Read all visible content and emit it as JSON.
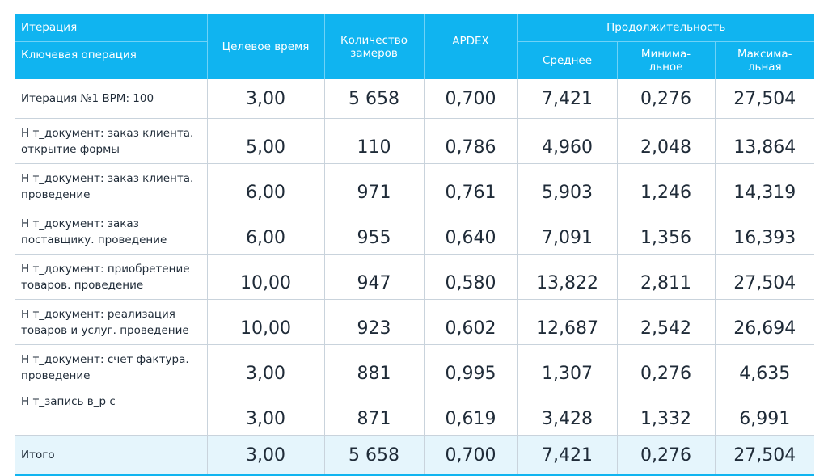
{
  "headers": {
    "iteration": "Итерация",
    "key_operation": "Ключевая операция",
    "target_time": "Целевое время",
    "count": "Количество замеров",
    "apdex": "APDEX",
    "duration": "Продолжительность",
    "avg": "Среднее",
    "min": "Минима-льное",
    "max": "Максима-льная"
  },
  "rows": [
    {
      "op": "Итерация №1 BPM: 100",
      "target": "3,00",
      "count": "5 658",
      "apdex": "0,700",
      "avg": "7,421",
      "min": "0,276",
      "max": "27,504"
    },
    {
      "op": "Н т_документ: заказ клиента. открытие  формы",
      "target": "5,00",
      "count": "110",
      "apdex": "0,786",
      "avg": "4,960",
      "min": "2,048",
      "max": "13,864"
    },
    {
      "op": "Н т_документ: заказ клиента. проведение",
      "target": "6,00",
      "count": "971",
      "apdex": "0,761",
      "avg": "5,903",
      "min": "1,246",
      "max": "14,319"
    },
    {
      "op": "Н т_документ: заказ поставщику. проведение",
      "target": "6,00",
      "count": "955",
      "apdex": "0,640",
      "avg": "7,091",
      "min": "1,356",
      "max": "16,393"
    },
    {
      "op": "Н т_документ: приобретение товаров. проведение",
      "target": "10,00",
      "count": "947",
      "apdex": "0,580",
      "avg": "13,822",
      "min": "2,811",
      "max": "27,504"
    },
    {
      "op": "Н т_документ: реализация товаров и услуг. проведение",
      "target": "10,00",
      "count": "923",
      "apdex": "0,602",
      "avg": "12,687",
      "min": "2,542",
      "max": "26,694"
    },
    {
      "op": "Н т_документ: счет фактура. проведение",
      "target": "3,00",
      "count": "881",
      "apdex": "0,995",
      "avg": "1,307",
      "min": "0,276",
      "max": "4,635"
    },
    {
      "op": "Н т_запись в_р с",
      "target": "3,00",
      "count": "871",
      "apdex": "0,619",
      "avg": "3,428",
      "min": "1,332",
      "max": "6,991"
    }
  ],
  "total": {
    "op": "Итого",
    "target": "3,00",
    "count": "5 658",
    "apdex": "0,700",
    "avg": "7,421",
    "min": "0,276",
    "max": "27,504"
  },
  "colors": {
    "header_bg": "#10b4f0",
    "total_bg": "#e5f5fc",
    "text": "#1f2b38"
  }
}
